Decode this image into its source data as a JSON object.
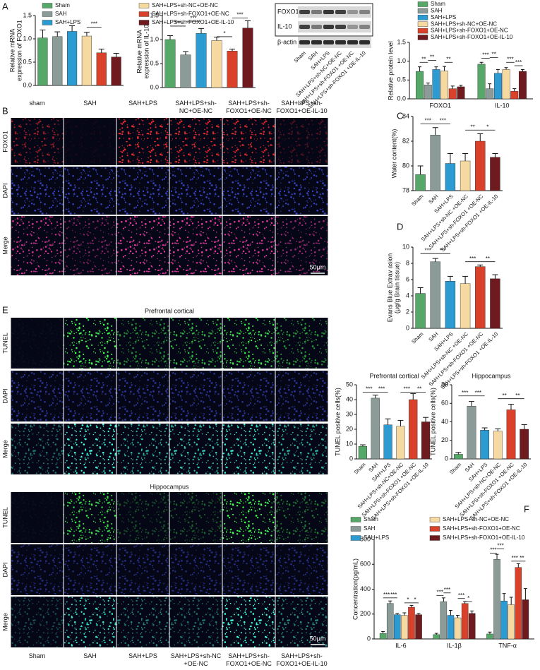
{
  "panels": [
    "A",
    "B",
    "C",
    "D",
    "E",
    "F"
  ],
  "western_blot": {
    "bands": [
      "FOXO1",
      "IL-10",
      "β-actin"
    ],
    "lanes": [
      "Sham",
      "SAH",
      "SAH+LPS",
      "SAH+LPS+sh-NC+OE-NC",
      "SAH+LPS+sh-FOXO1 +OE-NC",
      "SAH+LPS+sh-FOXO1 +OE-IL-10"
    ]
  },
  "micrographs": [
    {
      "columns": [
        "sham",
        "SAH",
        "SAH+LPS",
        "SAH+LPS+sh-NC+OE-NC",
        "SAH+LPS+sh-FOXO1+OE-NC",
        "SAH+LPS+sh-FOXO1+OE-IL-10"
      ],
      "rows": [
        "FOXO1",
        "DAPI",
        "Merge"
      ],
      "scale_bar": "50μm"
    },
    {
      "sections": [
        "Prefrontal cortical",
        "Hippocampus"
      ],
      "rows": [
        "TUNEL",
        "DAPI",
        "Merge"
      ],
      "columns": [
        "Sham",
        "SAH",
        "SAH+LPS",
        "SAH+LPS+sh-NC +OE-NC",
        "SAH+LPS+sh-FOXO1+OE-NC",
        "SAH+LPS+sh-FOXO1+OE-IL-10"
      ],
      "scale_bar": "50μm"
    }
  ],
  "chart_data": [
    {
      "type": "bar",
      "ylabel": [
        "Relative mRNA",
        "expression of FOXO1"
      ],
      "legend": true,
      "categories": [
        "Sham",
        "SAH",
        "SAH+LPS",
        "SAH+LPS+sh-NC+OE-NC",
        "SAH+LPS+sh-FOXO1+OE-NC",
        "SAH+LPS+sh-FOXO1+OE-IL-10"
      ],
      "colors": [
        "#55a868",
        "#8a9b98",
        "#2b9bd2",
        "#f5d9a0",
        "#d9412b",
        "#6e1a1e"
      ],
      "values": [
        1.02,
        1.05,
        1.16,
        1.06,
        0.7,
        0.61
      ],
      "errors": [
        0.17,
        0.1,
        0.12,
        0.08,
        0.08,
        0.08
      ],
      "ylim": [
        0,
        1.5
      ],
      "yticks": [
        {
          "value": 0,
          "label": "0.0"
        },
        0.5,
        {
          "value": 1,
          "label": "1.0"
        },
        1.5
      ],
      "annotations": [
        {
          "text": "***",
          "between": [
            3,
            4
          ],
          "y": 1.25
        }
      ]
    },
    {
      "type": "bar",
      "ylabel": [
        "Relative mRNA",
        "expression of IL-10"
      ],
      "colors": [
        "#55a868",
        "#8a9b98",
        "#2b9bd2",
        "#f5d9a0",
        "#d9412b",
        "#6e1a1e"
      ],
      "values": [
        1.0,
        0.68,
        1.13,
        0.98,
        0.76,
        1.24
      ],
      "errors": [
        0.08,
        0.07,
        0.1,
        0.07,
        0.04,
        0.15
      ],
      "ylim": [
        0,
        1.5
      ],
      "yticks": [
        {
          "value": 0,
          "label": "0.0"
        },
        0.5,
        {
          "value": 1,
          "label": "1.0"
        },
        1.5
      ],
      "annotations": [
        {
          "text": "***",
          "between": [
            0,
            1
          ],
          "y": 1.28
        },
        {
          "text": "***",
          "between": [
            1,
            2
          ],
          "y": 1.38
        },
        {
          "text": "*",
          "between": [
            3,
            4
          ],
          "y": 1.06
        },
        {
          "text": "***",
          "between": [
            4,
            5
          ],
          "y": 1.45
        }
      ]
    },
    {
      "type": "grouped_bar",
      "ylabel": [
        "Relative protein level"
      ],
      "categories": [
        "FOXO1",
        "IL-10"
      ],
      "series": [
        {
          "name": "Sham",
          "color": "#55a868",
          "values": [
            0.73,
            0.92
          ],
          "errors": [
            0.12,
            0.05
          ]
        },
        {
          "name": "SAH",
          "color": "#8a9b98",
          "values": [
            0.37,
            0.27
          ],
          "errors": [
            0.05,
            0.13
          ]
        },
        {
          "name": "SAH+LPS",
          "color": "#2b9bd2",
          "values": [
            0.78,
            0.68
          ],
          "errors": [
            0.07,
            0.1
          ]
        },
        {
          "name": "SAH+LPS+sh-NC+OE-NC",
          "color": "#f5d9a0",
          "values": [
            0.74,
            0.78
          ],
          "errors": [
            0.12,
            0.05
          ]
        },
        {
          "name": "SAH+LPS+sh-FOXO1+OE-NC",
          "color": "#d9412b",
          "values": [
            0.27,
            0.2
          ],
          "errors": [
            0.07,
            0.07
          ]
        },
        {
          "name": "SAH+LPS+sh-FOXO1+OE-IL-10",
          "color": "#6e1a1e",
          "values": [
            0.32,
            0.73
          ],
          "errors": [
            0.04,
            0.05
          ]
        }
      ],
      "ylim": [
        0,
        1.5
      ],
      "yticks": [
        {
          "value": 0,
          "label": "0.0"
        },
        0.5,
        {
          "value": 1,
          "label": "1.0"
        },
        1.5
      ],
      "annotations": [
        {
          "text": "**",
          "group": 0,
          "between": [
            0,
            1
          ],
          "y": 0.97
        },
        {
          "text": "**",
          "group": 0,
          "between": [
            1,
            2
          ],
          "y": 1.02
        },
        {
          "text": "**",
          "group": 0,
          "between": [
            3,
            4
          ],
          "y": 0.97
        },
        {
          "text": "***",
          "group": 1,
          "between": [
            0,
            1
          ],
          "y": 1.08
        },
        {
          "text": "**",
          "group": 1,
          "between": [
            1,
            2
          ],
          "y": 1.1
        },
        {
          "text": "***",
          "group": 1,
          "between": [
            3,
            4
          ],
          "y": 0.97
        },
        {
          "text": "***",
          "group": 1,
          "between": [
            4,
            5
          ],
          "y": 0.88
        }
      ]
    },
    {
      "type": "bar",
      "ylabel": [
        "Water content(%)"
      ],
      "categories": [
        "Sham",
        "SAH",
        "SAH+LPS",
        "SAH+LPS+sh-NC +OE-NC",
        "SAH+LPS+sh-FOXO1 +OE-NC",
        "SAH+LPS+sh-FOXO1 +OE-IL-10"
      ],
      "colors": [
        "#55a868",
        "#8a9b98",
        "#2b9bd2",
        "#f5d9a0",
        "#d9412b",
        "#6e1a1e"
      ],
      "values": [
        79.3,
        82.5,
        80.2,
        80.4,
        82.0,
        80.7
      ],
      "errors": [
        0.7,
        0.6,
        0.8,
        0.6,
        0.6,
        0.3
      ],
      "ylim": [
        78,
        84
      ],
      "yticks": [
        78,
        80,
        82,
        84
      ],
      "annotations": [
        {
          "text": "***",
          "between": [
            0,
            1
          ],
          "y": 83.4
        },
        {
          "text": "***",
          "between": [
            1,
            2
          ],
          "y": 83.4
        },
        {
          "text": "**",
          "between": [
            3,
            4
          ],
          "y": 82.9
        },
        {
          "text": "*",
          "between": [
            4,
            5
          ],
          "y": 82.9
        }
      ]
    },
    {
      "type": "bar",
      "ylabel": [
        "Evans Blue Extrav asion",
        "(μg/g Brain tissue)"
      ],
      "categories": [
        "Sham",
        "SAH",
        "SAH+LPS",
        "SAH+LPS+sh-NC +OE-NC",
        "SAH+LPS+sh-FOXO1 +OE-NC",
        "SAH+LPS+sh-FOXO1 +OE-IL-10"
      ],
      "colors": [
        "#55a868",
        "#8a9b98",
        "#2b9bd2",
        "#f5d9a0",
        "#d9412b",
        "#6e1a1e"
      ],
      "values": [
        4.3,
        8.2,
        5.8,
        5.5,
        7.6,
        6.1
      ],
      "errors": [
        0.7,
        0.4,
        0.6,
        0.9,
        0.2,
        0.5
      ],
      "ylim": [
        0,
        10
      ],
      "yticks": [
        0,
        2,
        4,
        6,
        8,
        10
      ],
      "annotations": [
        {
          "text": "***",
          "between": [
            0,
            1
          ],
          "y": 9.2
        },
        {
          "text": "***",
          "between": [
            1,
            2
          ],
          "y": 9.2
        },
        {
          "text": "***",
          "between": [
            3,
            4
          ],
          "y": 8.2
        },
        {
          "text": "**",
          "between": [
            4,
            5
          ],
          "y": 8.2
        }
      ]
    },
    {
      "type": "bar",
      "title": "Prefrontal cortical",
      "ylabel": [
        "TUNEL positive cells(%)"
      ],
      "categories": [
        "Sham",
        "SAH",
        "SAH+LPS",
        "SAH+LPS+sh-NC+OE-NC",
        "SAH+LPS+sh-FOXO1 +OE-NC",
        "SAH+LPS+sh-FOXO1 +OE-IL-10"
      ],
      "colors": [
        "#55a868",
        "#8a9b98",
        "#2b9bd2",
        "#f5d9a0",
        "#d9412b",
        "#6e1a1e"
      ],
      "values": [
        8.5,
        41,
        23,
        22,
        40,
        25
      ],
      "errors": [
        1,
        2,
        4,
        4,
        4,
        3
      ],
      "ylim": [
        0,
        50
      ],
      "yticks": [
        0,
        10,
        20,
        30,
        40,
        50
      ],
      "annotations": [
        {
          "text": "***",
          "between": [
            0,
            1
          ],
          "y": 45
        },
        {
          "text": "***",
          "between": [
            1,
            2
          ],
          "y": 45
        },
        {
          "text": "***",
          "between": [
            3,
            4
          ],
          "y": 45
        },
        {
          "text": "**",
          "between": [
            4,
            5
          ],
          "y": 45
        }
      ]
    },
    {
      "type": "bar",
      "title": "Hippocampus",
      "ylabel": [
        "TUNEL positive cells(%)"
      ],
      "categories": [
        "Sham",
        "SAH",
        "SAH+LPS",
        "SAH+LPS+sh-NC+OE-NC",
        "SAH+LPS+sh-FOXO1 +OE-NC",
        "SAH+LPS+sh-FOXO1 +OE-IL-10"
      ],
      "colors": [
        "#55a868",
        "#8a9b98",
        "#2b9bd2",
        "#f5d9a0",
        "#d9412b",
        "#6e1a1e"
      ],
      "values": [
        5,
        57,
        31,
        30,
        53,
        32
      ],
      "errors": [
        2,
        5,
        2.5,
        2.5,
        6,
        5
      ],
      "ylim": [
        0,
        80
      ],
      "yticks": [
        0,
        20,
        40,
        60,
        80
      ],
      "annotations": [
        {
          "text": "***",
          "between": [
            0,
            1
          ],
          "y": 68
        },
        {
          "text": "***",
          "between": [
            1,
            2
          ],
          "y": 68
        },
        {
          "text": "**",
          "between": [
            3,
            4
          ],
          "y": 65
        },
        {
          "text": "**",
          "between": [
            4,
            5
          ],
          "y": 65
        }
      ]
    },
    {
      "type": "grouped_bar",
      "ylabel": [
        "Concentration(pg/mL)"
      ],
      "categories": [
        "IL-6",
        "IL-1β",
        "TNF-α"
      ],
      "series": [
        {
          "name": "Sham",
          "color": "#55a868",
          "values": [
            45,
            35,
            40
          ],
          "errors": [
            15,
            10,
            15
          ]
        },
        {
          "name": "SAH",
          "color": "#8a9b98",
          "values": [
            285,
            300,
            640
          ],
          "errors": [
            20,
            30,
            40
          ]
        },
        {
          "name": "SAH+LPS",
          "color": "#2b9bd2",
          "values": [
            195,
            190,
            305
          ],
          "errors": [
            10,
            40,
            60
          ]
        },
        {
          "name": "SAH+LPS+sh-NC+OE-NC",
          "color": "#f5d9a0",
          "values": [
            190,
            170,
            275
          ],
          "errors": [
            20,
            20,
            60
          ]
        },
        {
          "name": "SAH+LPS+sh-FOXO1+OE-NC",
          "color": "#d9412b",
          "values": [
            255,
            285,
            575
          ],
          "errors": [
            15,
            15,
            30
          ]
        },
        {
          "name": "SAH+LPS+sh-FOXO1+OE-IL-10",
          "color": "#6e1a1e",
          "values": [
            195,
            205,
            315
          ],
          "errors": [
            10,
            20,
            90
          ]
        }
      ],
      "ylim": [
        0,
        800
      ],
      "yticks": [
        0,
        200,
        400,
        600,
        800
      ],
      "annotations": [
        {
          "text": "***",
          "group": 0,
          "between": [
            0,
            1
          ],
          "y": 330
        },
        {
          "text": "***",
          "group": 0,
          "between": [
            1,
            2
          ],
          "y": 330
        },
        {
          "text": "*",
          "group": 0,
          "between": [
            3,
            4
          ],
          "y": 290
        },
        {
          "text": "*",
          "group": 0,
          "between": [
            4,
            5
          ],
          "y": 290
        },
        {
          "text": "***",
          "group": 1,
          "between": [
            0,
            1
          ],
          "y": 350
        },
        {
          "text": "***",
          "group": 1,
          "between": [
            1,
            2
          ],
          "y": 370
        },
        {
          "text": "***",
          "group": 1,
          "between": [
            3,
            4
          ],
          "y": 325
        },
        {
          "text": "*",
          "group": 1,
          "between": [
            4,
            5
          ],
          "y": 300
        },
        {
          "text": "***",
          "group": 2,
          "between": [
            0,
            1
          ],
          "y": 690
        },
        {
          "text": "***",
          "group": 2,
          "between": [
            1,
            2
          ],
          "y": 725
        },
        {
          "text": "***",
          "group": 2,
          "between": [
            3,
            4
          ],
          "y": 625
        },
        {
          "text": "**",
          "group": 2,
          "between": [
            4,
            5
          ],
          "y": 625
        }
      ]
    }
  ]
}
